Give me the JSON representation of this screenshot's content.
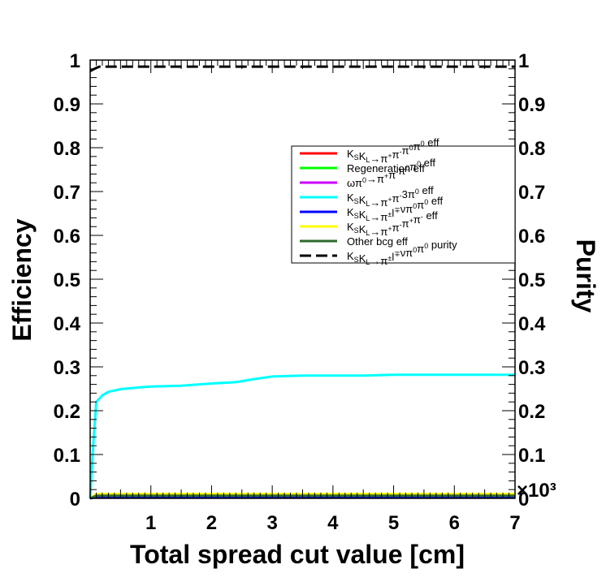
{
  "chart_data": {
    "type": "line",
    "xlabel": "Total spread cut value [cm]",
    "ylabel_left": "Efficiency",
    "ylabel_right": "Purity",
    "x_multiplier": "×10³",
    "xlim": [
      0,
      7
    ],
    "ylim": [
      0,
      1
    ],
    "x_ticks": [
      1,
      2,
      3,
      4,
      5,
      6,
      7
    ],
    "x_tick_labels": [
      "1",
      "2",
      "3",
      "4",
      "5",
      "6",
      "7"
    ],
    "y_ticks": [
      0,
      0.1,
      0.2,
      0.3,
      0.4,
      0.5,
      0.6,
      0.7,
      0.8,
      0.9,
      1
    ],
    "y_tick_labels": [
      "0",
      "0.1",
      "0.2",
      "0.3",
      "0.4",
      "0.5",
      "0.6",
      "0.7",
      "0.8",
      "0.9",
      "1"
    ],
    "legend_position": "upper-right",
    "series": [
      {
        "key": "signal_eff",
        "name": "K_S K_L → π+π−π0π0 eff",
        "color": "#ff0000",
        "dash": false,
        "x": [
          0,
          0.1,
          7
        ],
        "y": [
          0,
          0.005,
          0.005
        ]
      },
      {
        "key": "regen_eff",
        "name": "Regeneration eff",
        "color": "#00ff00",
        "dash": false,
        "x": [
          0,
          0.1,
          7
        ],
        "y": [
          0,
          0.008,
          0.008
        ]
      },
      {
        "key": "omega_eff",
        "name": "ωπ0 → π+π−π0π0 eff",
        "color": "#cc00ff",
        "dash": false,
        "x": [
          0,
          0.1,
          7
        ],
        "y": [
          0,
          0.004,
          0.004
        ]
      },
      {
        "key": "three_pi0_eff",
        "name": "K_S K_L → π+π−3π0 eff",
        "color": "#00ffff",
        "dash": false,
        "x": [
          0,
          0.05,
          0.1,
          0.2,
          0.3,
          0.5,
          0.8,
          1.0,
          1.5,
          2.0,
          2.4,
          2.7,
          3.0,
          3.5,
          4.0,
          4.5,
          5.0,
          6.0,
          7.0
        ],
        "y": [
          0,
          0.12,
          0.22,
          0.235,
          0.243,
          0.249,
          0.253,
          0.255,
          0.257,
          0.262,
          0.265,
          0.272,
          0.278,
          0.28,
          0.28,
          0.28,
          0.282,
          0.282,
          0.282
        ]
      },
      {
        "key": "semileptonic_eff",
        "name": "K_S K_L → π±l∓νπ0π0 eff",
        "color": "#0000ff",
        "dash": false,
        "x": [
          0,
          0.1,
          7
        ],
        "y": [
          0,
          0.003,
          0.003
        ]
      },
      {
        "key": "four_pi_eff",
        "name": "K_S K_L → π+π−π+π− eff",
        "color": "#ffff00",
        "dash": false,
        "x": [
          0,
          0.1,
          7
        ],
        "y": [
          0,
          0.01,
          0.01
        ]
      },
      {
        "key": "other_bcg_eff",
        "name": "Other bcg eff",
        "color": "#2d6a2d",
        "dash": false,
        "x": [
          0,
          0.1,
          7
        ],
        "y": [
          0,
          0.006,
          0.006
        ]
      },
      {
        "key": "purity",
        "name": "K_S K_L → π±l∓νπ0π0 purity",
        "color": "#000000",
        "dash": true,
        "x": [
          0,
          0.1,
          0.15,
          7
        ],
        "y": [
          0.975,
          0.982,
          0.985,
          0.985
        ]
      }
    ]
  },
  "legend": {
    "entries": [
      {
        "key": "signal_eff",
        "color": "#ff0000",
        "dash": false,
        "parts": [
          [
            "K",
            ""
          ],
          [
            "S",
            "sub"
          ],
          [
            "K",
            ""
          ],
          [
            "L",
            "sub"
          ],
          [
            "→π",
            ""
          ],
          [
            "+",
            "sup"
          ],
          [
            "π",
            ""
          ],
          [
            "-",
            "sup"
          ],
          [
            "π",
            ""
          ],
          [
            "0",
            "sup"
          ],
          [
            "π",
            ""
          ],
          [
            "0",
            "sup"
          ],
          [
            " eff",
            ""
          ]
        ]
      },
      {
        "key": "regen_eff",
        "color": "#00ff00",
        "dash": false,
        "parts": [
          [
            "Regeneration eff",
            ""
          ]
        ]
      },
      {
        "key": "omega_eff",
        "color": "#cc00ff",
        "dash": false,
        "parts": [
          [
            "ωπ",
            ""
          ],
          [
            "0",
            "sup"
          ],
          [
            "→π",
            ""
          ],
          [
            "+",
            "sup"
          ],
          [
            "π",
            ""
          ],
          [
            "-",
            "sup"
          ],
          [
            "π",
            ""
          ],
          [
            "0",
            "sup"
          ],
          [
            "π",
            ""
          ],
          [
            "0",
            "sup"
          ],
          [
            " eff",
            ""
          ]
        ]
      },
      {
        "key": "three_pi0_eff",
        "color": "#00ffff",
        "dash": false,
        "parts": [
          [
            "K",
            ""
          ],
          [
            "S",
            "sub"
          ],
          [
            "K",
            ""
          ],
          [
            "L",
            "sub"
          ],
          [
            "→π",
            ""
          ],
          [
            "+",
            "sup"
          ],
          [
            "π",
            ""
          ],
          [
            "-",
            "sup"
          ],
          [
            "3π",
            ""
          ],
          [
            "0",
            "sup"
          ],
          [
            " eff",
            ""
          ]
        ]
      },
      {
        "key": "semileptonic_eff",
        "color": "#0000ff",
        "dash": false,
        "parts": [
          [
            "K",
            ""
          ],
          [
            "S",
            "sub"
          ],
          [
            "K",
            ""
          ],
          [
            "L",
            "sub"
          ],
          [
            "→π",
            ""
          ],
          [
            "±",
            "sup"
          ],
          [
            "l",
            ""
          ],
          [
            "∓",
            "sup"
          ],
          [
            "νπ",
            ""
          ],
          [
            "0",
            "sup"
          ],
          [
            "π",
            ""
          ],
          [
            "0",
            "sup"
          ],
          [
            " eff",
            ""
          ]
        ]
      },
      {
        "key": "four_pi_eff",
        "color": "#ffff00",
        "dash": false,
        "parts": [
          [
            "K",
            ""
          ],
          [
            "S",
            "sub"
          ],
          [
            "K",
            ""
          ],
          [
            "L",
            "sub"
          ],
          [
            "→π",
            ""
          ],
          [
            "+",
            "sup"
          ],
          [
            "π",
            ""
          ],
          [
            "-",
            "sup"
          ],
          [
            "π",
            ""
          ],
          [
            "+",
            "sup"
          ],
          [
            "π",
            ""
          ],
          [
            "-",
            "sup"
          ],
          [
            " eff",
            ""
          ]
        ]
      },
      {
        "key": "other_bcg_eff",
        "color": "#2d6a2d",
        "dash": false,
        "parts": [
          [
            "Other bcg eff",
            ""
          ]
        ]
      },
      {
        "key": "purity",
        "color": "#000000",
        "dash": true,
        "parts": [
          [
            "K",
            ""
          ],
          [
            "S",
            "sub"
          ],
          [
            "K",
            ""
          ],
          [
            "L",
            "sub"
          ],
          [
            "→π",
            ""
          ],
          [
            "±",
            "sup"
          ],
          [
            "l",
            ""
          ],
          [
            "∓",
            "sup"
          ],
          [
            "νπ",
            ""
          ],
          [
            "0",
            "sup"
          ],
          [
            "π",
            ""
          ],
          [
            "0",
            "sup"
          ],
          [
            " purity",
            ""
          ]
        ]
      }
    ]
  }
}
